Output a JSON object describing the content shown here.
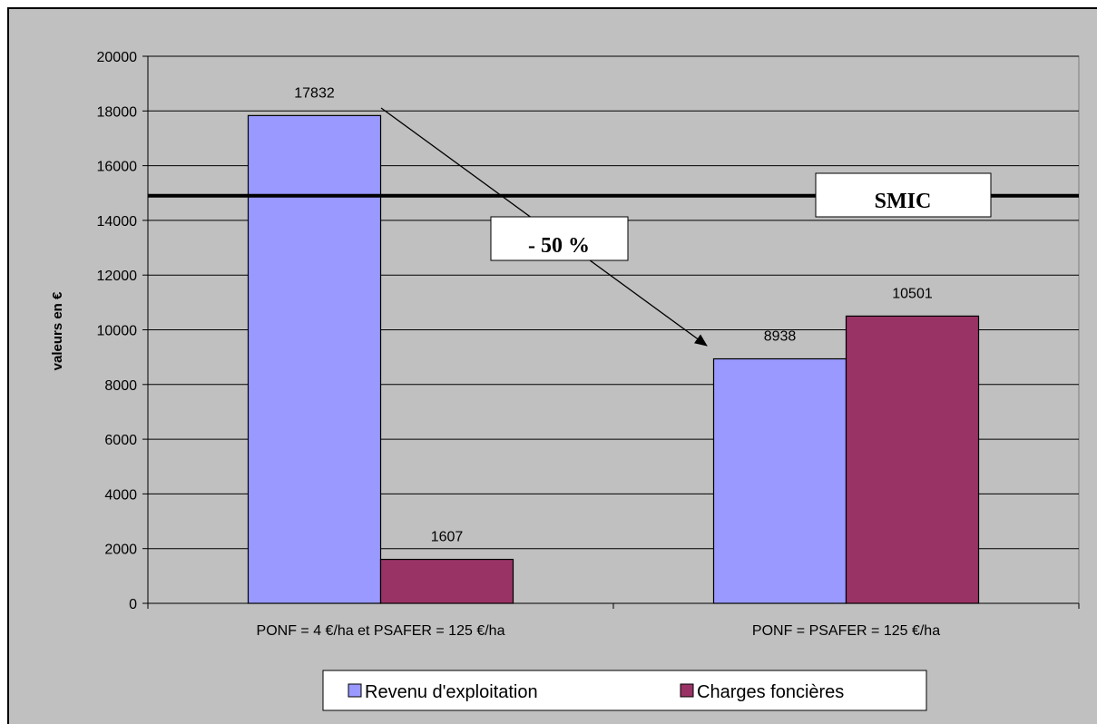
{
  "chart_data": {
    "type": "bar",
    "title": "",
    "xlabel": "",
    "ylabel": "valeurs en €",
    "ylim": [
      0,
      20000
    ],
    "yticks": [
      0,
      2000,
      4000,
      6000,
      8000,
      10000,
      12000,
      14000,
      16000,
      18000,
      20000
    ],
    "grid": true,
    "categories": [
      "PONF = 4 €/ha et PSAFER = 125 €/ha",
      "PONF = PSAFER = 125 €/ha"
    ],
    "series": [
      {
        "name": "Revenu d'exploitation",
        "values": [
          17832,
          8938
        ],
        "color": "#9999ff"
      },
      {
        "name": "Charges foncières",
        "values": [
          1607,
          10501
        ],
        "color": "#993366"
      }
    ],
    "reference_line": {
      "label": "SMIC",
      "value": 14900
    },
    "annotation": {
      "label": "- 50 %"
    },
    "legend_position": "bottom"
  }
}
